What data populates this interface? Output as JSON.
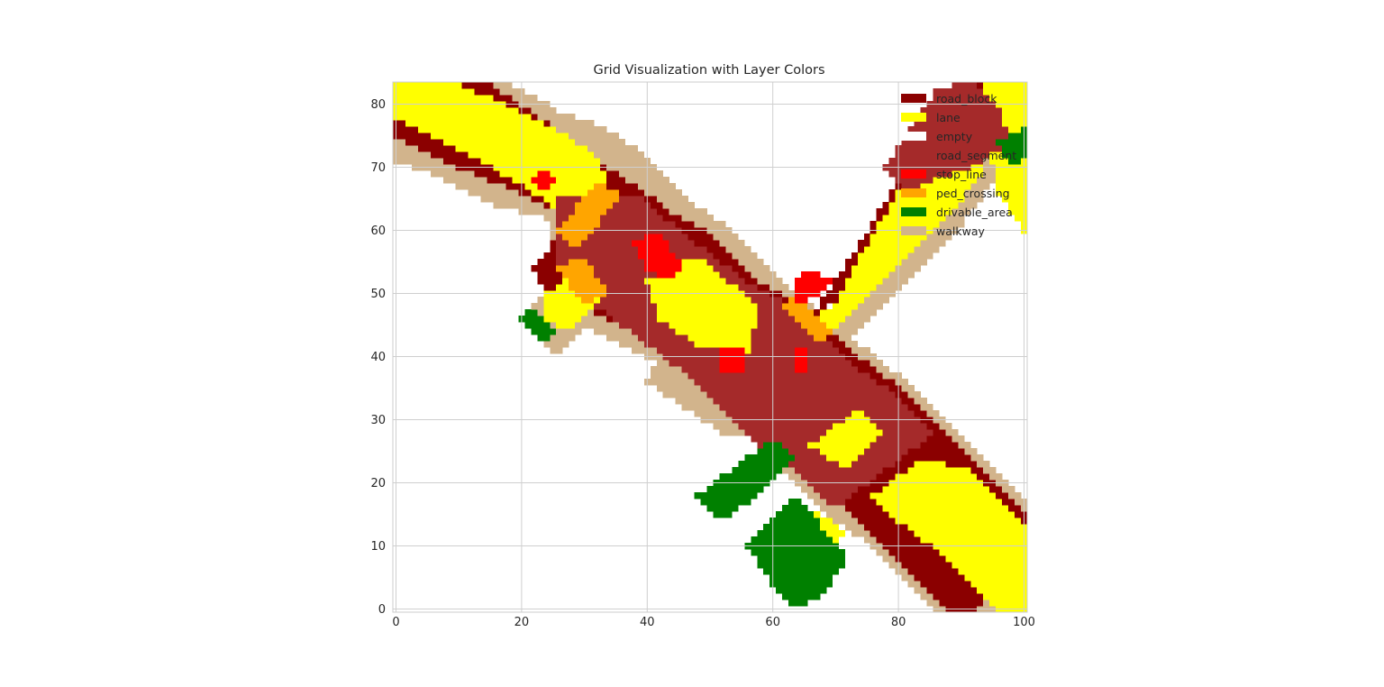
{
  "chart_data": {
    "type": "heatmap",
    "title": "Grid Visualization with Layer Colors",
    "xlabel": "",
    "ylabel": "",
    "xlim": [
      0,
      100
    ],
    "ylim": [
      0,
      83
    ],
    "cell_size": 1,
    "xticks": [
      0,
      20,
      40,
      60,
      80,
      100
    ],
    "yticks": [
      0,
      10,
      20,
      30,
      40,
      50,
      60,
      70,
      80
    ],
    "grid": true,
    "legend_position": "top-right",
    "background_layer": "empty",
    "layers": [
      {
        "name": "road_block",
        "color": "#8b0000"
      },
      {
        "name": "lane",
        "color": "#ffff00"
      },
      {
        "name": "empty",
        "color": "#ffffff"
      },
      {
        "name": "road_segment",
        "color": "#a52a2a"
      },
      {
        "name": "stop_line",
        "color": "#ff0000"
      },
      {
        "name": "ped_crossing",
        "color": "#ffa500"
      },
      {
        "name": "drivable_area",
        "color": "#008000"
      },
      {
        "name": "walkway",
        "color": "#d2b48c"
      }
    ],
    "regions": [
      {
        "layer": "walkway",
        "polygon": [
          [
            0,
            74
          ],
          [
            12,
            84
          ],
          [
            17,
            84
          ],
          [
            26,
            79
          ],
          [
            34,
            76
          ],
          [
            40,
            72
          ],
          [
            48,
            64
          ],
          [
            54,
            60
          ],
          [
            64,
            50
          ],
          [
            74,
            42
          ],
          [
            84,
            34
          ],
          [
            94,
            24
          ],
          [
            101,
            17
          ],
          [
            101,
            0
          ],
          [
            86,
            0
          ],
          [
            76,
            10
          ],
          [
            70,
            14
          ],
          [
            64,
            20
          ],
          [
            58,
            26
          ],
          [
            54,
            31
          ],
          [
            48,
            35
          ],
          [
            40,
            40
          ],
          [
            30,
            45
          ],
          [
            26,
            40
          ],
          [
            20,
            46
          ],
          [
            24,
            50
          ],
          [
            26,
            56
          ],
          [
            24,
            62
          ],
          [
            16,
            64
          ],
          [
            8,
            68
          ],
          [
            0,
            71
          ]
        ]
      },
      {
        "layer": "walkway",
        "polygon": [
          [
            40,
            36
          ],
          [
            46,
            32
          ],
          [
            52,
            28
          ],
          [
            56,
            28
          ],
          [
            54,
            34
          ],
          [
            48,
            38
          ],
          [
            42,
            40
          ]
        ]
      },
      {
        "layer": "walkway",
        "polygon": [
          [
            68,
            46
          ],
          [
            78,
            60
          ],
          [
            86,
            72
          ],
          [
            92,
            74
          ],
          [
            88,
            80
          ],
          [
            96,
            84
          ],
          [
            100,
            76
          ],
          [
            94,
            66
          ],
          [
            88,
            58
          ],
          [
            80,
            50
          ],
          [
            72,
            43
          ]
        ]
      },
      {
        "layer": "road_block",
        "polygon": [
          [
            0,
            78
          ],
          [
            10,
            84
          ],
          [
            14,
            84
          ],
          [
            26,
            76
          ],
          [
            34,
            70
          ],
          [
            44,
            63
          ],
          [
            50,
            60
          ],
          [
            58,
            52
          ],
          [
            66,
            48
          ],
          [
            74,
            40
          ],
          [
            82,
            34
          ],
          [
            90,
            26
          ],
          [
            101,
            14
          ],
          [
            101,
            9
          ],
          [
            93,
            0
          ],
          [
            88,
            0
          ],
          [
            80,
            8
          ],
          [
            74,
            14
          ],
          [
            66,
            22
          ],
          [
            60,
            26
          ],
          [
            54,
            32
          ],
          [
            46,
            38
          ],
          [
            38,
            44
          ],
          [
            30,
            48
          ],
          [
            24,
            50
          ],
          [
            22,
            54
          ],
          [
            28,
            62
          ],
          [
            20,
            66
          ],
          [
            10,
            70
          ],
          [
            0,
            75
          ]
        ]
      },
      {
        "layer": "lane",
        "polygon": [
          [
            0,
            84
          ],
          [
            8,
            84
          ],
          [
            18,
            80
          ],
          [
            26,
            76
          ],
          [
            32,
            72
          ],
          [
            34,
            67
          ],
          [
            28,
            62
          ],
          [
            22,
            66
          ],
          [
            12,
            72
          ],
          [
            0,
            78
          ]
        ]
      },
      {
        "layer": "road_segment",
        "polygon": [
          [
            26,
            66
          ],
          [
            38,
            66
          ],
          [
            48,
            58
          ],
          [
            56,
            52
          ],
          [
            64,
            48
          ],
          [
            74,
            38
          ],
          [
            80,
            34
          ],
          [
            86,
            28
          ],
          [
            78,
            22
          ],
          [
            70,
            16
          ],
          [
            68,
            18
          ],
          [
            64,
            22
          ],
          [
            58,
            26
          ],
          [
            54,
            30
          ],
          [
            48,
            36
          ],
          [
            40,
            42
          ],
          [
            32,
            48
          ],
          [
            26,
            54
          ]
        ]
      },
      {
        "layer": "lane",
        "polygon": [
          [
            40,
            52
          ],
          [
            48,
            56
          ],
          [
            58,
            48
          ],
          [
            56,
            40
          ],
          [
            48,
            42
          ],
          [
            42,
            46
          ]
        ]
      },
      {
        "layer": "lane",
        "polygon": [
          [
            24,
            50
          ],
          [
            30,
            54
          ],
          [
            34,
            50
          ],
          [
            28,
            44
          ],
          [
            24,
            46
          ]
        ]
      },
      {
        "layer": "lane",
        "polygon": [
          [
            66,
            26
          ],
          [
            74,
            32
          ],
          [
            78,
            28
          ],
          [
            72,
            22
          ]
        ]
      },
      {
        "layer": "lane",
        "polygon": [
          [
            76,
            18
          ],
          [
            84,
            24
          ],
          [
            92,
            22
          ],
          [
            101,
            12
          ],
          [
            101,
            0
          ],
          [
            96,
            0
          ],
          [
            88,
            8
          ],
          [
            80,
            14
          ]
        ]
      },
      {
        "layer": "lane",
        "polygon": [
          [
            66,
            16
          ],
          [
            70,
            14
          ],
          [
            72,
            12
          ],
          [
            68,
            8
          ],
          [
            64,
            10
          ]
        ]
      },
      {
        "layer": "road_block",
        "polygon": [
          [
            66,
            46
          ],
          [
            74,
            58
          ],
          [
            80,
            68
          ],
          [
            84,
            78
          ],
          [
            90,
            84
          ],
          [
            98,
            84
          ],
          [
            96,
            76
          ],
          [
            88,
            70
          ],
          [
            84,
            64
          ],
          [
            78,
            56
          ],
          [
            72,
            50
          ]
        ]
      },
      {
        "layer": "lane",
        "polygon": [
          [
            66,
            46
          ],
          [
            70,
            48
          ],
          [
            74,
            56
          ],
          [
            80,
            66
          ],
          [
            86,
            72
          ],
          [
            88,
            78
          ],
          [
            92,
            78
          ],
          [
            94,
            70
          ],
          [
            88,
            62
          ],
          [
            82,
            56
          ],
          [
            76,
            50
          ],
          [
            70,
            44
          ]
        ]
      },
      {
        "layer": "lane",
        "polygon": [
          [
            94,
            84
          ],
          [
            101,
            84
          ],
          [
            101,
            58
          ],
          [
            96,
            66
          ],
          [
            94,
            76
          ]
        ]
      },
      {
        "layer": "road_segment",
        "polygon": [
          [
            78,
            70
          ],
          [
            82,
            76
          ],
          [
            86,
            82
          ],
          [
            92,
            84
          ],
          [
            96,
            80
          ],
          [
            98,
            74
          ],
          [
            92,
            70
          ],
          [
            86,
            68
          ],
          [
            82,
            66
          ]
        ]
      },
      {
        "layer": "ped_crossing",
        "polygon": [
          [
            26,
            60
          ],
          [
            32,
            68
          ],
          [
            36,
            66
          ],
          [
            30,
            58
          ],
          [
            28,
            58
          ]
        ]
      },
      {
        "layer": "ped_crossing",
        "polygon": [
          [
            26,
            54
          ],
          [
            30,
            48
          ],
          [
            34,
            50
          ],
          [
            30,
            56
          ]
        ]
      },
      {
        "layer": "ped_crossing",
        "polygon": [
          [
            62,
            48
          ],
          [
            68,
            42
          ],
          [
            70,
            44
          ],
          [
            64,
            50
          ]
        ]
      },
      {
        "layer": "stop_line",
        "polygon": [
          [
            22,
            68
          ],
          [
            24,
            70
          ],
          [
            26,
            68
          ],
          [
            24,
            66
          ]
        ]
      },
      {
        "layer": "stop_line",
        "polygon": [
          [
            38,
            58
          ],
          [
            42,
            60
          ],
          [
            46,
            54
          ],
          [
            44,
            52
          ],
          [
            40,
            54
          ]
        ]
      },
      {
        "layer": "stop_line",
        "polygon": [
          [
            52,
            42
          ],
          [
            56,
            42
          ],
          [
            56,
            38
          ],
          [
            52,
            38
          ]
        ]
      },
      {
        "layer": "stop_line",
        "polygon": [
          [
            64,
            38
          ],
          [
            66,
            38
          ],
          [
            66,
            42
          ],
          [
            64,
            42
          ]
        ]
      },
      {
        "layer": "stop_line",
        "polygon": [
          [
            64,
            48
          ],
          [
            68,
            50
          ],
          [
            70,
            52
          ],
          [
            66,
            54
          ],
          [
            64,
            52
          ]
        ]
      },
      {
        "layer": "drivable_area",
        "polygon": [
          [
            20,
            46
          ],
          [
            22,
            48
          ],
          [
            26,
            44
          ],
          [
            24,
            42
          ]
        ]
      },
      {
        "layer": "drivable_area",
        "polygon": [
          [
            48,
            18
          ],
          [
            56,
            24
          ],
          [
            60,
            27
          ],
          [
            64,
            24
          ],
          [
            58,
            18
          ],
          [
            52,
            14
          ]
        ]
      },
      {
        "layer": "drivable_area",
        "polygon": [
          [
            56,
            10
          ],
          [
            64,
            18
          ],
          [
            72,
            8
          ],
          [
            68,
            2
          ],
          [
            64,
            0
          ],
          [
            60,
            4
          ]
        ]
      },
      {
        "layer": "drivable_area",
        "polygon": [
          [
            96,
            74
          ],
          [
            100,
            76
          ],
          [
            101,
            84
          ],
          [
            101,
            72
          ],
          [
            98,
            70
          ]
        ]
      }
    ]
  }
}
